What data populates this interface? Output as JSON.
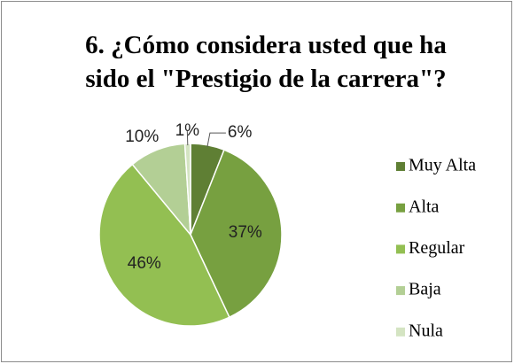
{
  "chart_data": {
    "type": "pie",
    "title": "6. ¿Cómo considera usted que ha sido el \"Prestigio de la carrera\"?",
    "categories": [
      "Muy Alta",
      "Alta",
      "Regular",
      "Baja",
      "Nula"
    ],
    "values": [
      6,
      37,
      46,
      10,
      1
    ],
    "value_labels": [
      "6%",
      "37%",
      "46%",
      "10%",
      "1%"
    ],
    "colors": [
      "#5f7f34",
      "#77a040",
      "#93bf52",
      "#b3cf95",
      "#d4e4c2"
    ],
    "legend": "right"
  }
}
